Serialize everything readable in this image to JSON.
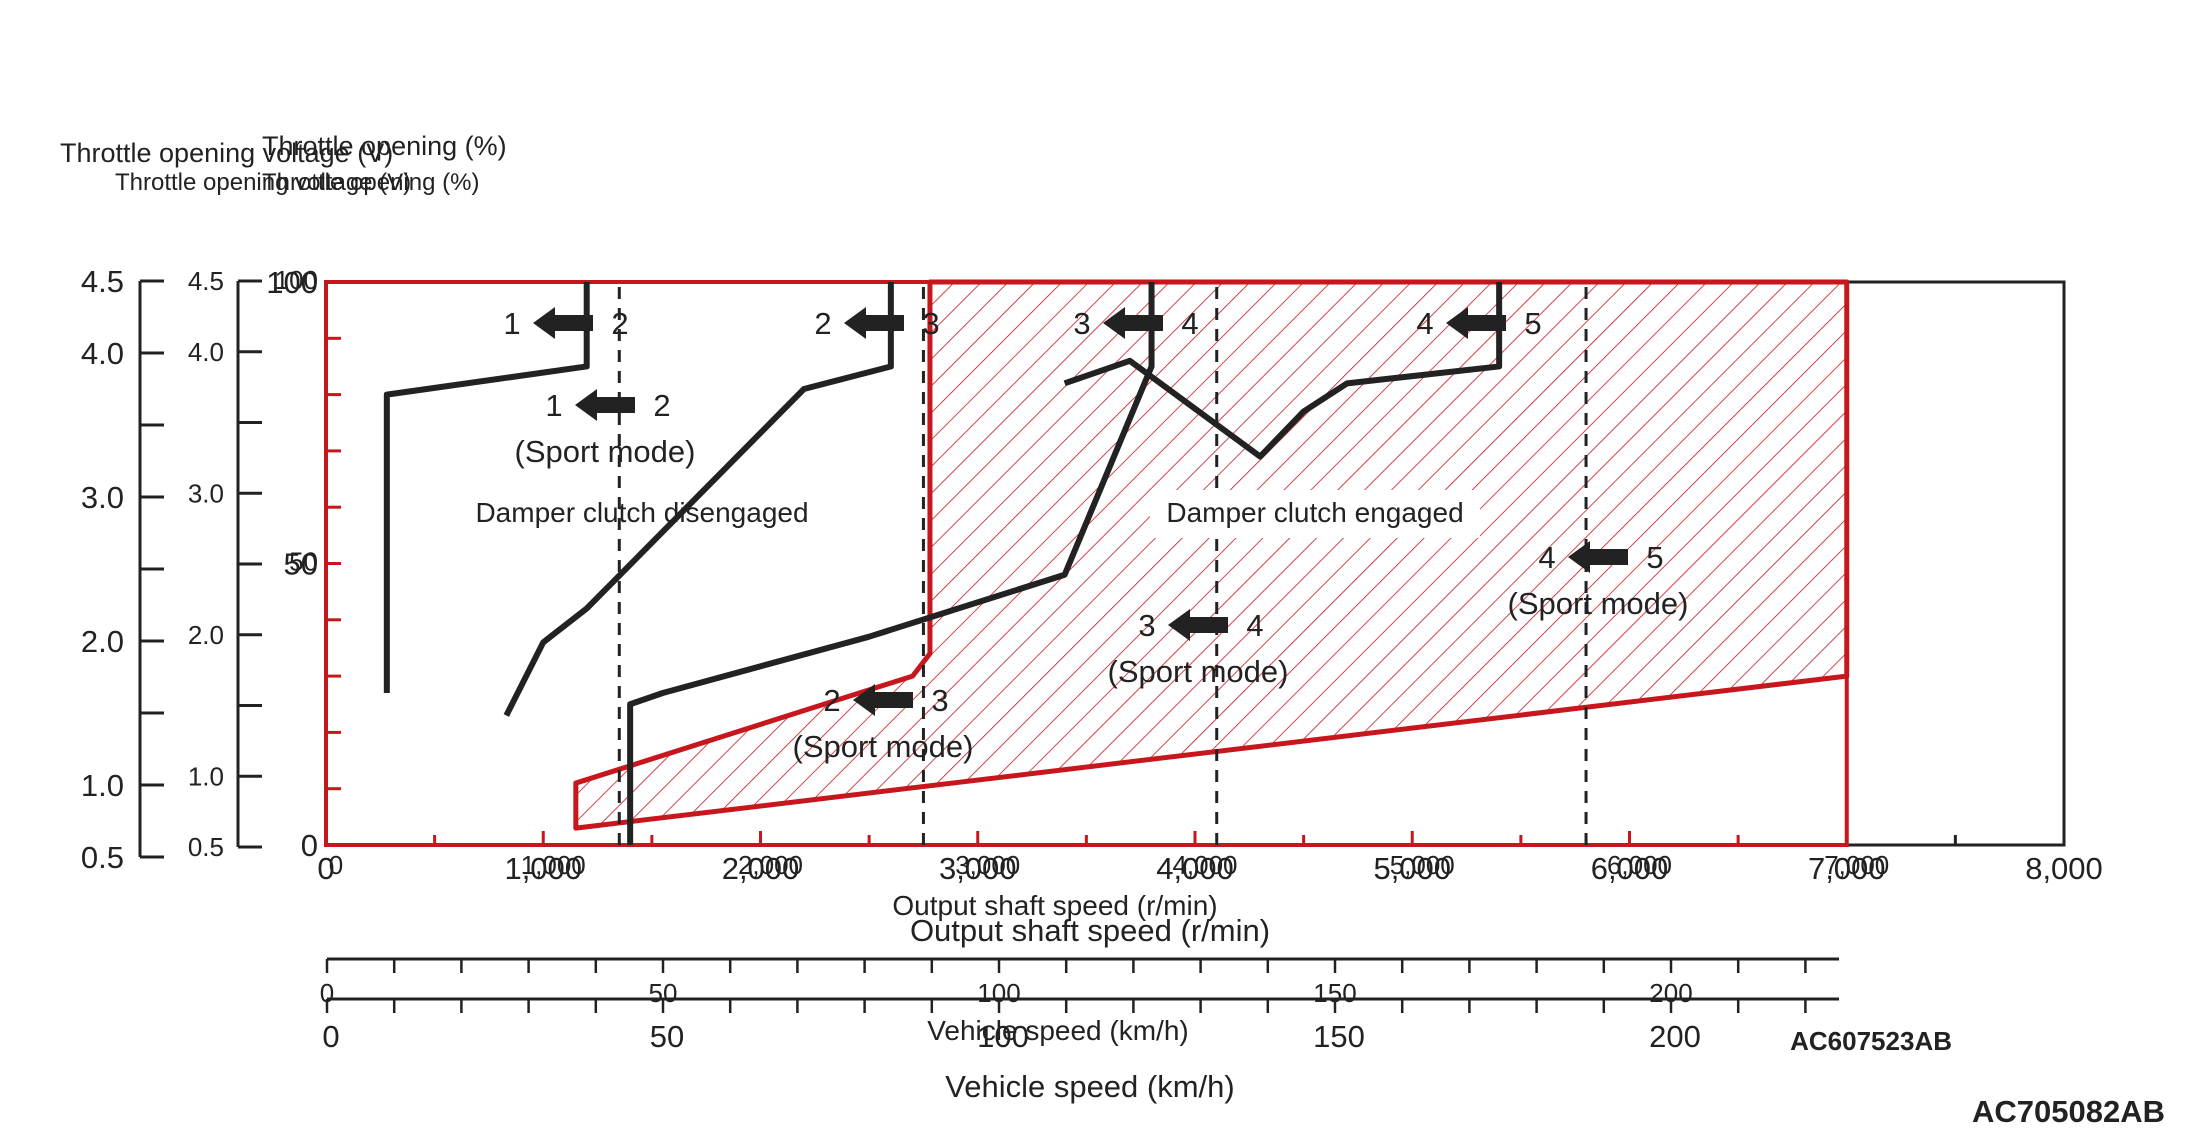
{
  "chart_data": {
    "type": "line",
    "title": "",
    "xlabel": "Output shaft speed (r/min)",
    "xlabel_secondary": "Vehicle speed (km/h)",
    "ylabel_outer": "Throttle opening voltage (V)",
    "ylabel_outer_small": "Throttle opening voltage (V)",
    "ylabel_inner": "Throttle opening (%)",
    "ylabel_inner_small": "Throttle opening (%)",
    "x_ticks_inner": [
      "0",
      "1,000",
      "2,000",
      "3,000",
      "4,000",
      "5,000",
      "6,000",
      "7,000"
    ],
    "x_ticks_outer": [
      "0",
      "1,000",
      "2,000",
      "3,000",
      "4,000",
      "5,000",
      "6,000",
      "7,000",
      "8,000"
    ],
    "y_ticks_percent": [
      "0",
      "50",
      "100"
    ],
    "y_ticks_percent_small": [
      "50",
      "100"
    ],
    "y_ticks_voltage": [
      "0.5",
      "1.0",
      "2.0",
      "3.0",
      "4.0",
      "4.5"
    ],
    "y_ticks_voltage_small": [
      "0.5",
      "1.0",
      "2.0",
      "3.0",
      "4.0",
      "4.5"
    ],
    "speed_ticks": [
      "0",
      "50",
      "100",
      "150",
      "200"
    ],
    "speed_ticks_small": [
      "0",
      "50",
      "100",
      "150",
      "200"
    ],
    "xlim": [
      0,
      8000
    ],
    "ylim": [
      0,
      100
    ],
    "series": [
      {
        "name": "1-2 upshift",
        "style": "solid",
        "x": [
          280,
          280,
          1200,
          1200
        ],
        "y": [
          27,
          80,
          85,
          100
        ]
      },
      {
        "name": "2-3 upshift",
        "style": "solid",
        "x": [
          830,
          830,
          1000,
          1200,
          2200,
          2600,
          2600
        ],
        "y": [
          23,
          23,
          36,
          42,
          81,
          85,
          100
        ]
      },
      {
        "name": "3-4 upshift",
        "style": "solid",
        "x": [
          1400,
          1400,
          1550,
          2500,
          3400,
          3800,
          3800
        ],
        "y": [
          0,
          25,
          27,
          37,
          48,
          85,
          100
        ]
      },
      {
        "name": "4-5 upshift",
        "style": "solid",
        "x": [
          3400,
          3700,
          4300,
          4500,
          4700,
          5400,
          5400
        ],
        "y": [
          82,
          86,
          69,
          77,
          82,
          85,
          100
        ]
      },
      {
        "name": "downshift 1-2",
        "style": "dashed",
        "x": [
          1350,
          1350
        ],
        "y": [
          0,
          100
        ]
      },
      {
        "name": "downshift 2-3",
        "style": "dashed",
        "x": [
          2750,
          2750
        ],
        "y": [
          0,
          100
        ]
      },
      {
        "name": "downshift 3-4",
        "style": "dashed",
        "x": [
          4100,
          4100
        ],
        "y": [
          0,
          100
        ]
      },
      {
        "name": "downshift 4-5",
        "style": "dashed",
        "x": [
          5800,
          5800
        ],
        "y": [
          0,
          100
        ]
      }
    ],
    "regions": [
      {
        "name": "Damper clutch engaged region",
        "x": [
          1150,
          1150,
          2700,
          2780,
          2780,
          7000,
          7000
        ],
        "y": [
          3,
          11,
          30,
          34,
          100,
          100,
          30
        ]
      }
    ],
    "annotations": {
      "disengaged": "Damper clutch disengaged",
      "engaged": "Damper clutch engaged",
      "shifts": [
        {
          "from": "1",
          "to": "2",
          "mode": ""
        },
        {
          "from": "2",
          "to": "3",
          "mode": ""
        },
        {
          "from": "3",
          "to": "4",
          "mode": ""
        },
        {
          "from": "4",
          "to": "5",
          "mode": ""
        },
        {
          "from": "1",
          "to": "2",
          "mode": "(Sport mode)"
        },
        {
          "from": "4",
          "to": "5",
          "mode": "(Sport mode)"
        },
        {
          "from": "3",
          "to": "4",
          "mode": "(Sport mode)"
        },
        {
          "from": "2",
          "to": "3",
          "mode": "(Sport mode)"
        }
      ]
    },
    "codes": [
      "AC607523AB",
      "AC705082AB"
    ],
    "colors": {
      "line": "#222222",
      "region": "#c8161d",
      "axis": "#222222"
    }
  }
}
